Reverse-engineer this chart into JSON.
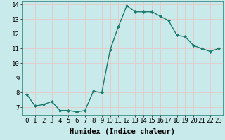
{
  "x": [
    0,
    1,
    2,
    3,
    4,
    5,
    6,
    7,
    8,
    9,
    10,
    11,
    12,
    13,
    14,
    15,
    16,
    17,
    18,
    19,
    20,
    21,
    22,
    23
  ],
  "y": [
    7.9,
    7.1,
    7.2,
    7.4,
    6.8,
    6.8,
    6.7,
    6.8,
    8.1,
    8.0,
    10.9,
    12.5,
    13.9,
    13.5,
    13.5,
    13.5,
    13.2,
    12.9,
    11.9,
    11.8,
    11.2,
    11.0,
    10.8,
    11.0
  ],
  "line_color": "#1a7a6e",
  "marker_color": "#1a7a6e",
  "bg_color": "#c8eaea",
  "grid_color": "#e8c8c8",
  "xlabel": "Humidex (Indice chaleur)",
  "xlim": [
    -0.5,
    23.5
  ],
  "ylim": [
    6.5,
    14.2
  ],
  "yticks": [
    7,
    8,
    9,
    10,
    11,
    12,
    13,
    14
  ],
  "xticks": [
    0,
    1,
    2,
    3,
    4,
    5,
    6,
    7,
    8,
    9,
    10,
    11,
    12,
    13,
    14,
    15,
    16,
    17,
    18,
    19,
    20,
    21,
    22,
    23
  ],
  "xlabel_fontsize": 7.5,
  "tick_fontsize": 6.5,
  "linewidth": 1.0,
  "markersize": 2.0
}
